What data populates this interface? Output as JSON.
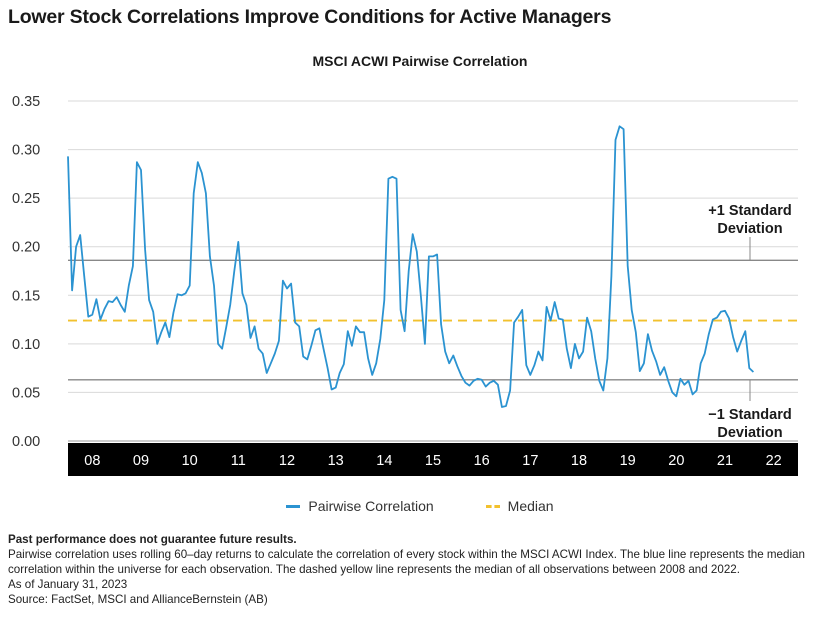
{
  "title": "Lower Stock Correlations Improve Conditions for Active Managers",
  "chart_data": {
    "type": "line",
    "title": "MSCI ACWI Pairwise Correlation",
    "xlabel": "",
    "ylabel": "",
    "x_start_year": 2008,
    "points_per_year": 12,
    "x_tick_labels": [
      "08",
      "09",
      "10",
      "11",
      "12",
      "13",
      "14",
      "15",
      "16",
      "17",
      "18",
      "19",
      "20",
      "21",
      "22"
    ],
    "ylim": [
      0,
      0.35
    ],
    "y_ticks": [
      "0.00",
      "0.05",
      "0.10",
      "0.15",
      "0.20",
      "0.25",
      "0.30",
      "0.35"
    ],
    "grid": "horizontal",
    "series": [
      {
        "name": "Pairwise Correlation",
        "color": "#2b93d1",
        "values": [
          0.293,
          0.155,
          0.2,
          0.212,
          0.17,
          0.128,
          0.13,
          0.146,
          0.125,
          0.136,
          0.144,
          0.143,
          0.148,
          0.14,
          0.133,
          0.16,
          0.18,
          0.287,
          0.279,
          0.197,
          0.145,
          0.133,
          0.1,
          0.112,
          0.122,
          0.107,
          0.132,
          0.151,
          0.15,
          0.152,
          0.16,
          0.255,
          0.287,
          0.276,
          0.255,
          0.19,
          0.16,
          0.1,
          0.095,
          0.117,
          0.14,
          0.175,
          0.205,
          0.152,
          0.14,
          0.106,
          0.118,
          0.095,
          0.09,
          0.07,
          0.08,
          0.09,
          0.103,
          0.165,
          0.157,
          0.162,
          0.122,
          0.118,
          0.087,
          0.084,
          0.098,
          0.114,
          0.116,
          0.095,
          0.075,
          0.053,
          0.055,
          0.07,
          0.079,
          0.113,
          0.098,
          0.118,
          0.112,
          0.112,
          0.085,
          0.068,
          0.08,
          0.105,
          0.145,
          0.27,
          0.272,
          0.27,
          0.135,
          0.113,
          0.175,
          0.213,
          0.195,
          0.15,
          0.1,
          0.19,
          0.19,
          0.192,
          0.12,
          0.092,
          0.08,
          0.088,
          0.077,
          0.067,
          0.06,
          0.057,
          0.062,
          0.064,
          0.063,
          0.056,
          0.06,
          0.062,
          0.058,
          0.035,
          0.036,
          0.052,
          0.122,
          0.128,
          0.135,
          0.078,
          0.068,
          0.078,
          0.092,
          0.083,
          0.138,
          0.124,
          0.143,
          0.126,
          0.125,
          0.095,
          0.075,
          0.1,
          0.085,
          0.092,
          0.127,
          0.113,
          0.085,
          0.062,
          0.052,
          0.085,
          0.17,
          0.31,
          0.324,
          0.321,
          0.18,
          0.135,
          0.112,
          0.072,
          0.08,
          0.11,
          0.093,
          0.082,
          0.068,
          0.076,
          0.062,
          0.05,
          0.046,
          0.064,
          0.058,
          0.062,
          0.048,
          0.052,
          0.08,
          0.09,
          0.11,
          0.125,
          0.127,
          0.133,
          0.134,
          0.126,
          0.107,
          0.092,
          0.103,
          0.113,
          0.075,
          0.071
        ]
      }
    ],
    "reference_lines": [
      {
        "name": "Median",
        "value": 0.124,
        "color": "#f2c12e",
        "style": "dashed"
      },
      {
        "name": "+1 Standard Deviation",
        "value": 0.186,
        "color": "#888888",
        "style": "solid",
        "label_lines": [
          "+1 Standard",
          "Deviation"
        ]
      },
      {
        "name": "−1 Standard Deviation",
        "value": 0.063,
        "color": "#888888",
        "style": "solid",
        "label_lines": [
          "−1 Standard",
          "Deviation"
        ]
      }
    ],
    "legend": {
      "placement": "bottom-center",
      "items": [
        {
          "label": "Pairwise Correlation",
          "color": "#2b93d1",
          "style": "solid"
        },
        {
          "label": "Median",
          "color": "#f2c12e",
          "style": "dashed"
        }
      ]
    }
  },
  "footer": {
    "disclaimer": "Past performance does not guarantee future results.",
    "note": "Pairwise correlation uses rolling 60–day returns to calculate the correlation of every stock within the MSCI ACWI Index. The blue line represents the median correlation within the universe for each observation. The dashed yellow line represents the median of all observations between 2008 and 2022.",
    "as_of": "As of January 31, 2023",
    "source": "Source: FactSet, MSCI and AllianceBernstein (AB)"
  }
}
